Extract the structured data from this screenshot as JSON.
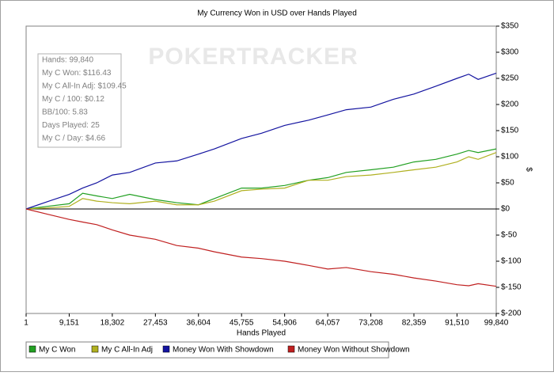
{
  "chart_data": {
    "type": "line",
    "title": "My Currency Won in USD over Hands Played",
    "x_label": "Hands Played",
    "y_label": "$",
    "watermark": "POKERTRACKER",
    "annotations": [
      "Hands: 99,840",
      "My C Won: $116.43",
      "My C All-In Adj: $109.45",
      "My C / 100: $0.12",
      "BB/100: 5.83",
      "Days Played: 25",
      "My C / Day: $4.66"
    ],
    "legend": "bottom",
    "x": [
      1,
      4500,
      9151,
      12000,
      15000,
      18302,
      22000,
      27453,
      32000,
      36604,
      40000,
      45755,
      50000,
      54906,
      60000,
      64057,
      68000,
      73208,
      78000,
      82359,
      87000,
      91510,
      94000,
      96000,
      99840
    ],
    "series": [
      {
        "name": "My C Won",
        "color": "#22a022",
        "values": [
          0,
          5,
          10,
          30,
          25,
          20,
          28,
          18,
          12,
          8,
          20,
          40,
          40,
          45,
          55,
          60,
          70,
          75,
          80,
          90,
          95,
          105,
          112,
          108,
          115
        ]
      },
      {
        "name": "My C All-In Adj",
        "color": "#b0b020",
        "values": [
          0,
          2,
          5,
          20,
          15,
          12,
          10,
          15,
          8,
          8,
          15,
          35,
          38,
          40,
          55,
          55,
          62,
          65,
          70,
          75,
          80,
          90,
          100,
          95,
          108
        ]
      },
      {
        "name": "Money Won With Showdown",
        "color": "#1414a0",
        "values": [
          0,
          14,
          28,
          40,
          50,
          65,
          70,
          88,
          92,
          105,
          115,
          135,
          145,
          160,
          170,
          180,
          190,
          195,
          210,
          220,
          235,
          250,
          258,
          248,
          260
        ]
      },
      {
        "name": "Money Won Without Showdown",
        "color": "#c02020",
        "values": [
          0,
          -10,
          -20,
          -25,
          -30,
          -40,
          -50,
          -58,
          -70,
          -75,
          -82,
          -92,
          -95,
          -100,
          -108,
          -115,
          -112,
          -120,
          -125,
          -132,
          -138,
          -145,
          -147,
          -143,
          -148
        ]
      }
    ],
    "xlim": [
      1,
      99840
    ],
    "xticks": [
      1,
      {
        "value": 9151,
        "label": "9,151"
      },
      {
        "value": 18302,
        "label": "18,302"
      },
      {
        "value": 27453,
        "label": "27,453"
      },
      {
        "value": 36604,
        "label": "36,604"
      },
      {
        "value": 45755,
        "label": "45,755"
      },
      {
        "value": 54906,
        "label": "54,906"
      },
      {
        "value": 64057,
        "label": "64,057"
      },
      {
        "value": 73208,
        "label": "73,208"
      },
      {
        "value": 82359,
        "label": "82,359"
      },
      {
        "value": 91510,
        "label": "91,510"
      },
      {
        "value": 99840,
        "label": "99,840"
      }
    ],
    "ylim": [
      -200,
      350
    ],
    "yticks": [
      {
        "value": -200,
        "label": "$-200"
      },
      {
        "value": -150,
        "label": "$-150"
      },
      {
        "value": -100,
        "label": "$-100"
      },
      {
        "value": -50,
        "label": "$-50"
      },
      {
        "value": 0,
        "label": "$0"
      },
      {
        "value": 50,
        "label": "$50"
      },
      {
        "value": 100,
        "label": "$100"
      },
      {
        "value": 150,
        "label": "$150"
      },
      {
        "value": 200,
        "label": "$200"
      },
      {
        "value": 250,
        "label": "$250"
      },
      {
        "value": 300,
        "label": "$300"
      },
      {
        "value": 350,
        "label": "$350"
      }
    ]
  }
}
